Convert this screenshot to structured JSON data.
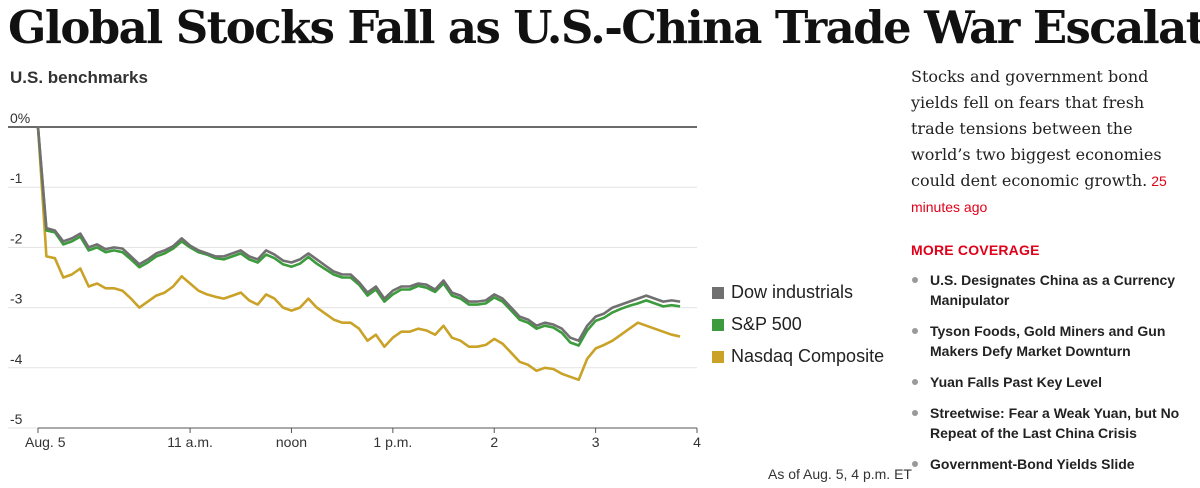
{
  "headline": "Global Stocks Fall as U.S.-China Trade War Escalates",
  "sidebar": {
    "summary": "Stocks and government bond yields fell on fears that fresh trade tensions between the world’s two biggest economies could dent economic growth.",
    "timestamp": "25 minutes ago",
    "coverage_title": "MORE COVERAGE",
    "coverage_items": [
      "U.S. Designates China as a Currency Manipulator",
      "Tyson Foods, Gold Miners and Gun Makers Defy Market Downturn",
      "Yuan Falls Past Key Level",
      "Streetwise: Fear a Weak Yuan, but No Repeat of the Last China Crisis",
      "Government-Bond Yields Slide"
    ]
  },
  "chart_data": {
    "type": "line",
    "title": "U.S. benchmarks",
    "note": "As of Aug. 5, 4 p.m. ET",
    "y_ticks": [
      "0%",
      "-1",
      "-2",
      "-3",
      "-4",
      "-5"
    ],
    "ylim": [
      -5,
      0
    ],
    "x_ticks": [
      {
        "label": "Aug. 5",
        "x": 9.5
      },
      {
        "label": "11 a.m.",
        "x": 11
      },
      {
        "label": "noon",
        "x": 12
      },
      {
        "label": "1 p.m.",
        "x": 13
      },
      {
        "label": "2",
        "x": 14
      },
      {
        "label": "3",
        "x": 15
      },
      {
        "label": "4",
        "x": 16
      }
    ],
    "xlim": [
      9.5,
      16
    ],
    "grid": true,
    "legend_position": "right",
    "series": [
      {
        "name": "Dow industrials",
        "color": "#707070",
        "points": [
          [
            9.5,
            0
          ],
          [
            9.583,
            -1.68
          ],
          [
            9.667,
            -1.72
          ],
          [
            9.75,
            -1.9
          ],
          [
            9.833,
            -1.85
          ],
          [
            9.917,
            -1.77
          ],
          [
            10,
            -2
          ],
          [
            10.083,
            -1.95
          ],
          [
            10.167,
            -2.03
          ],
          [
            10.25,
            -2.0
          ],
          [
            10.333,
            -2.02
          ],
          [
            10.417,
            -2.15
          ],
          [
            10.5,
            -2.28
          ],
          [
            10.583,
            -2.2
          ],
          [
            10.667,
            -2.1
          ],
          [
            10.75,
            -2.05
          ],
          [
            10.833,
            -1.98
          ],
          [
            10.917,
            -1.85
          ],
          [
            11,
            -1.97
          ],
          [
            11.083,
            -2.05
          ],
          [
            11.167,
            -2.1
          ],
          [
            11.25,
            -2.15
          ],
          [
            11.333,
            -2.15
          ],
          [
            11.417,
            -2.1
          ],
          [
            11.5,
            -2.05
          ],
          [
            11.583,
            -2.15
          ],
          [
            11.667,
            -2.2
          ],
          [
            11.75,
            -2.05
          ],
          [
            11.833,
            -2.12
          ],
          [
            11.917,
            -2.22
          ],
          [
            12,
            -2.25
          ],
          [
            12.083,
            -2.2
          ],
          [
            12.167,
            -2.1
          ],
          [
            12.25,
            -2.2
          ],
          [
            12.333,
            -2.3
          ],
          [
            12.417,
            -2.4
          ],
          [
            12.5,
            -2.45
          ],
          [
            12.583,
            -2.45
          ],
          [
            12.667,
            -2.58
          ],
          [
            12.75,
            -2.75
          ],
          [
            12.833,
            -2.65
          ],
          [
            12.917,
            -2.85
          ],
          [
            13,
            -2.72
          ],
          [
            13.083,
            -2.65
          ],
          [
            13.167,
            -2.65
          ],
          [
            13.25,
            -2.6
          ],
          [
            13.333,
            -2.62
          ],
          [
            13.417,
            -2.7
          ],
          [
            13.5,
            -2.55
          ],
          [
            13.583,
            -2.75
          ],
          [
            13.667,
            -2.8
          ],
          [
            13.75,
            -2.9
          ],
          [
            13.833,
            -2.9
          ],
          [
            13.917,
            -2.88
          ],
          [
            14,
            -2.78
          ],
          [
            14.083,
            -2.85
          ],
          [
            14.167,
            -3.0
          ],
          [
            14.25,
            -3.15
          ],
          [
            14.333,
            -3.2
          ],
          [
            14.417,
            -3.3
          ],
          [
            14.5,
            -3.25
          ],
          [
            14.583,
            -3.28
          ],
          [
            14.667,
            -3.35
          ],
          [
            14.75,
            -3.5
          ],
          [
            14.833,
            -3.55
          ],
          [
            14.917,
            -3.3
          ],
          [
            15,
            -3.15
          ],
          [
            15.083,
            -3.1
          ],
          [
            15.167,
            -3.0
          ],
          [
            15.25,
            -2.95
          ],
          [
            15.333,
            -2.9
          ],
          [
            15.417,
            -2.85
          ],
          [
            15.5,
            -2.8
          ],
          [
            15.583,
            -2.85
          ],
          [
            15.667,
            -2.9
          ],
          [
            15.75,
            -2.88
          ],
          [
            15.833,
            -2.9
          ]
        ]
      },
      {
        "name": "S&P 500",
        "color": "#3c9b3c",
        "points": [
          [
            9.5,
            0
          ],
          [
            9.583,
            -1.72
          ],
          [
            9.667,
            -1.75
          ],
          [
            9.75,
            -1.95
          ],
          [
            9.833,
            -1.9
          ],
          [
            9.917,
            -1.82
          ],
          [
            10,
            -2.05
          ],
          [
            10.083,
            -2.0
          ],
          [
            10.167,
            -2.08
          ],
          [
            10.25,
            -2.05
          ],
          [
            10.333,
            -2.08
          ],
          [
            10.417,
            -2.2
          ],
          [
            10.5,
            -2.33
          ],
          [
            10.583,
            -2.25
          ],
          [
            10.667,
            -2.15
          ],
          [
            10.75,
            -2.1
          ],
          [
            10.833,
            -2.02
          ],
          [
            10.917,
            -1.9
          ],
          [
            11,
            -2.0
          ],
          [
            11.083,
            -2.08
          ],
          [
            11.167,
            -2.12
          ],
          [
            11.25,
            -2.18
          ],
          [
            11.333,
            -2.2
          ],
          [
            11.417,
            -2.15
          ],
          [
            11.5,
            -2.1
          ],
          [
            11.583,
            -2.2
          ],
          [
            11.667,
            -2.25
          ],
          [
            11.75,
            -2.12
          ],
          [
            11.833,
            -2.18
          ],
          [
            11.917,
            -2.28
          ],
          [
            12,
            -2.32
          ],
          [
            12.083,
            -2.27
          ],
          [
            12.167,
            -2.16
          ],
          [
            12.25,
            -2.27
          ],
          [
            12.333,
            -2.36
          ],
          [
            12.417,
            -2.45
          ],
          [
            12.5,
            -2.5
          ],
          [
            12.583,
            -2.5
          ],
          [
            12.667,
            -2.62
          ],
          [
            12.75,
            -2.8
          ],
          [
            12.833,
            -2.7
          ],
          [
            12.917,
            -2.9
          ],
          [
            13,
            -2.78
          ],
          [
            13.083,
            -2.7
          ],
          [
            13.167,
            -2.7
          ],
          [
            13.25,
            -2.64
          ],
          [
            13.333,
            -2.67
          ],
          [
            13.417,
            -2.74
          ],
          [
            13.5,
            -2.6
          ],
          [
            13.583,
            -2.8
          ],
          [
            13.667,
            -2.85
          ],
          [
            13.75,
            -2.95
          ],
          [
            13.833,
            -2.95
          ],
          [
            13.917,
            -2.93
          ],
          [
            14,
            -2.83
          ],
          [
            14.083,
            -2.9
          ],
          [
            14.167,
            -3.05
          ],
          [
            14.25,
            -3.2
          ],
          [
            14.333,
            -3.25
          ],
          [
            14.417,
            -3.35
          ],
          [
            14.5,
            -3.3
          ],
          [
            14.583,
            -3.33
          ],
          [
            14.667,
            -3.42
          ],
          [
            14.75,
            -3.58
          ],
          [
            14.833,
            -3.63
          ],
          [
            14.917,
            -3.38
          ],
          [
            15,
            -3.22
          ],
          [
            15.083,
            -3.17
          ],
          [
            15.167,
            -3.08
          ],
          [
            15.25,
            -3.02
          ],
          [
            15.333,
            -2.97
          ],
          [
            15.417,
            -2.93
          ],
          [
            15.5,
            -2.88
          ],
          [
            15.583,
            -2.93
          ],
          [
            15.667,
            -2.98
          ],
          [
            15.75,
            -2.96
          ],
          [
            15.833,
            -2.98
          ]
        ]
      },
      {
        "name": "Nasdaq Composite",
        "color": "#c9a227",
        "points": [
          [
            9.5,
            0
          ],
          [
            9.583,
            -2.15
          ],
          [
            9.667,
            -2.18
          ],
          [
            9.75,
            -2.5
          ],
          [
            9.833,
            -2.45
          ],
          [
            9.917,
            -2.35
          ],
          [
            10,
            -2.65
          ],
          [
            10.083,
            -2.6
          ],
          [
            10.167,
            -2.68
          ],
          [
            10.25,
            -2.68
          ],
          [
            10.333,
            -2.72
          ],
          [
            10.417,
            -2.85
          ],
          [
            10.5,
            -3.0
          ],
          [
            10.583,
            -2.9
          ],
          [
            10.667,
            -2.8
          ],
          [
            10.75,
            -2.75
          ],
          [
            10.833,
            -2.65
          ],
          [
            10.917,
            -2.48
          ],
          [
            11,
            -2.6
          ],
          [
            11.083,
            -2.72
          ],
          [
            11.167,
            -2.78
          ],
          [
            11.25,
            -2.82
          ],
          [
            11.333,
            -2.85
          ],
          [
            11.417,
            -2.8
          ],
          [
            11.5,
            -2.75
          ],
          [
            11.583,
            -2.88
          ],
          [
            11.667,
            -2.95
          ],
          [
            11.75,
            -2.78
          ],
          [
            11.833,
            -2.85
          ],
          [
            11.917,
            -3.0
          ],
          [
            12,
            -3.05
          ],
          [
            12.083,
            -3.0
          ],
          [
            12.167,
            -2.85
          ],
          [
            12.25,
            -3.0
          ],
          [
            12.333,
            -3.1
          ],
          [
            12.417,
            -3.2
          ],
          [
            12.5,
            -3.25
          ],
          [
            12.583,
            -3.25
          ],
          [
            12.667,
            -3.35
          ],
          [
            12.75,
            -3.55
          ],
          [
            12.833,
            -3.45
          ],
          [
            12.917,
            -3.65
          ],
          [
            13,
            -3.5
          ],
          [
            13.083,
            -3.4
          ],
          [
            13.167,
            -3.4
          ],
          [
            13.25,
            -3.35
          ],
          [
            13.333,
            -3.38
          ],
          [
            13.417,
            -3.45
          ],
          [
            13.5,
            -3.3
          ],
          [
            13.583,
            -3.5
          ],
          [
            13.667,
            -3.55
          ],
          [
            13.75,
            -3.65
          ],
          [
            13.833,
            -3.65
          ],
          [
            13.917,
            -3.62
          ],
          [
            14,
            -3.52
          ],
          [
            14.083,
            -3.6
          ],
          [
            14.167,
            -3.75
          ],
          [
            14.25,
            -3.9
          ],
          [
            14.333,
            -3.95
          ],
          [
            14.417,
            -4.05
          ],
          [
            14.5,
            -4.0
          ],
          [
            14.583,
            -4.02
          ],
          [
            14.667,
            -4.1
          ],
          [
            14.75,
            -4.15
          ],
          [
            14.833,
            -4.2
          ],
          [
            14.917,
            -3.85
          ],
          [
            15,
            -3.68
          ],
          [
            15.083,
            -3.62
          ],
          [
            15.167,
            -3.55
          ],
          [
            15.25,
            -3.45
          ],
          [
            15.333,
            -3.35
          ],
          [
            15.417,
            -3.25
          ],
          [
            15.5,
            -3.3
          ],
          [
            15.583,
            -3.35
          ],
          [
            15.667,
            -3.4
          ],
          [
            15.75,
            -3.45
          ],
          [
            15.833,
            -3.48
          ]
        ]
      }
    ]
  }
}
